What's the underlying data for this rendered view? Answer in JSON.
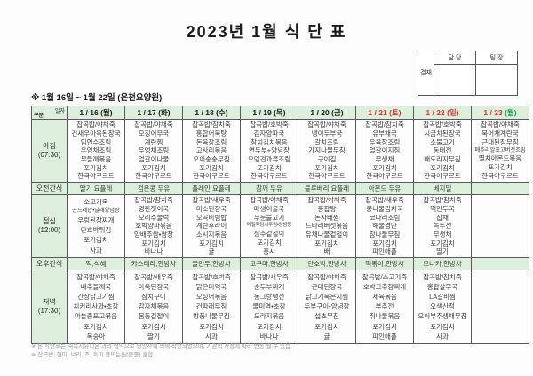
{
  "title": "2023년 1월 식 단 표",
  "subtitle": "※ 1월 16일 ~ 1월 22일 (은천요양원)",
  "approval": {
    "label": "결재",
    "columns": [
      "담 당",
      "팀 장"
    ]
  },
  "colors": {
    "header_bg_green": "#dcefdc",
    "holiday_red": "#e63329",
    "holiday_green": "#1f9d4e",
    "weekday_black": "#1a1a1a",
    "border": "#5a5a5a"
  },
  "table": {
    "corner": {
      "top": "일자",
      "bottom": "구분"
    },
    "columns": [
      {
        "date": "1 / 16",
        "day": "(월)",
        "date_color": "#1a1a1a",
        "day_color": "#1a1a1a"
      },
      {
        "date": "1 / 17",
        "day": "(화)",
        "date_color": "#1a1a1a",
        "day_color": "#1a1a1a"
      },
      {
        "date": "1 / 18",
        "day": "(수)",
        "date_color": "#1a1a1a",
        "day_color": "#1a1a1a"
      },
      {
        "date": "1 / 19",
        "day": "(목)",
        "date_color": "#1a1a1a",
        "day_color": "#1a1a1a"
      },
      {
        "date": "1 / 20",
        "day": "(금)",
        "date_color": "#1a1a1a",
        "day_color": "#1a1a1a"
      },
      {
        "date": "1 / 21",
        "day": "(토)",
        "date_color": "#e63329",
        "day_color": "#e63329"
      },
      {
        "date": "1 / 22",
        "day": "(일)",
        "date_color": "#e63329",
        "day_color": "#e63329"
      },
      {
        "date": "1 / 23",
        "day": "(월)",
        "date_color": "#e63329",
        "day_color": "#1f9d4e"
      }
    ],
    "rows": [
      {
        "label": "아침",
        "time": "(07:30)",
        "snack": false,
        "menus": [
          [
            "잡곡밥/야채죽",
            "건새우아욱된장국",
            "임연수조림",
            "우엉채조림",
            "무들깨볶음",
            "포기김치",
            "한국야쿠르트"
          ],
          [
            "잡곡밥/야채죽",
            "오징어무국",
            "계란찜",
            "우엉채조림",
            "얼갈이나물",
            "포기김치",
            "한국야쿠르트"
          ],
          [
            "잡곡밥/참치죽",
            "홍합어묵탕",
            "돈육장조림",
            "고사리볶음",
            "오이송송무침",
            "포기김치",
            "한국야쿠르트"
          ],
          [
            "잡곡밥/호박죽",
            "감자양파국",
            "참치김치볶음",
            "연두부+양념장",
            "오뎅견과류조림",
            "포기김치",
            "한국야쿠르트"
          ],
          [
            "잡곡밥/야채죽",
            "냉이두부국",
            "갈치조림",
            "가지나물무침",
            "구이김",
            "포기김치",
            "한국야쿠르트"
          ],
          [
            "잡곡밥/참치죽",
            "유부채국",
            "우육장조림",
            "얼갈이지짐",
            "무생채",
            "포기김치",
            "한국야쿠르트"
          ],
          [
            "잡곡밥/호박죽",
            "시금치된장국",
            "소불고기",
            "동태전",
            "배도라지무침",
            "포기김치",
            "한국야쿠르트"
          ],
          [
            "잡곡밥/야채죽",
            "북어채계란국",
            "근대된장무침",
            "메추리알표고버섯조림",
            "멸치아몬드볶음",
            "포기김치",
            "한국야쿠르트"
          ]
        ]
      },
      {
        "label": "오전간식",
        "time": "",
        "snack": true,
        "menus": [
          [
            "딸기 요플레"
          ],
          [
            "검은콩 두유"
          ],
          [
            "플레인 요플레"
          ],
          [
            "참깨 두유"
          ],
          [
            "블루베리 요플레"
          ],
          [
            "아몬드 두유"
          ],
          [
            "베지밀"
          ],
          []
        ]
      },
      {
        "label": "점심",
        "time": "(12:00)",
        "snack": false,
        "menus": [
          [
            "소고기죽",
            "곤드레밥•달래양념장",
            "우렁된장찌개",
            "단호박튀김",
            "포기김치",
            "사과"
          ],
          [
            "잡곡밥/참치죽",
            "명란젓이국",
            "오리주물럭",
            "호박양파볶음",
            "양배추쌈•쌈장",
            "포기김치",
            "바나나"
          ],
          [
            "잡곡밥/새우죽",
            "미소된장국",
            "오곡비빔밥",
            "계란후라이",
            "소시지볶음",
            "포기김치",
            "귤"
          ],
          [
            "잡곡밥/야채죽",
            "매생이굴국",
            "우둔불고기",
            "메밀묵김치무침•양념장",
            "상추겉절이",
            "포기김치",
            "홍시"
          ],
          [
            "잡곡밥/야채죽",
            "홍합탕",
            "돈사태찜",
            "느타리버섯볶음",
            "유채나물겉절이",
            "포기김치",
            "배"
          ],
          [
            "잡곡밥/새우죽",
            "콩나물김치국",
            "코다리조림",
            "해물경단",
            "참나물무침",
            "포기김치",
            "파인애플"
          ],
          [
            "잡곡밥/참치죽",
            "떡만두국",
            "잡채",
            "녹두전",
            "무생채",
            "포기김치",
            "딸기"
          ],
          []
        ]
      },
      {
        "label": "오후간식",
        "time": "",
        "snack": true,
        "menus": [
          [
            "떡,식혜"
          ],
          [
            "카스테라,한방차"
          ],
          [
            "물만두,한방차"
          ],
          [
            "고구마,한방차"
          ],
          [
            "단호박,한방차"
          ],
          [
            "떡볶이,한방차"
          ],
          [
            "모나카,한방차"
          ],
          []
        ]
      },
      {
        "label": "저녁",
        "time": "(17:30)",
        "snack": false,
        "menus": [
          [
            "잡곡밥/야채죽",
            "배추들깨국",
            "간장닭고기찜",
            "치커리사과•초장",
            "마늘종표고볶음",
            "포기김치",
            "복숭아"
          ],
          [
            "잡곡밥/새우죽",
            "아욱된장국",
            "삼치구이",
            "감자채볶음",
            "봄동겉절이",
            "포기김치",
            "딸기"
          ],
          [
            "잡곡밥/호박죽",
            "맑은미역국",
            "오징어볶음",
            "건파래무침",
            "방풍나물무침",
            "포기김치",
            "사과"
          ],
          [
            "잡곡밥/새우죽",
            "순두부찌개",
            "동그랑땡전",
            "물미역•초장",
            "도라지볶음",
            "포기김치",
            "바나나"
          ],
          [
            "잡곡밥/야채죽",
            "근대된장국",
            "닭고기묵은지찜",
            "두부구이•양념장",
            "섭초무침",
            "포기김치",
            "귤"
          ],
          [
            "잡곡밥/소고기죽",
            "호박고추장찌개",
            "제육볶음",
            "부추전",
            "취나물볶음",
            "포기김치",
            "파인애플"
          ],
          [
            "잡곡밥/참치죽",
            "홍합살무국",
            "LA갈비찜",
            "오색산적",
            "오이부추생채무침",
            "포기김치",
            "사과"
          ],
          []
        ]
      }
    ]
  },
  "footnotes": [
    "※ 본 식단표는 ㈜복지유니온 과의 협약으로 영양사에 의해 작성되었으며, 기관의 사정에 따라 변동 될 수 있음",
    "※ 잡곡밥: 현미, 보리, 조, 흑미 콩또는(낱물콩) 혼합"
  ]
}
